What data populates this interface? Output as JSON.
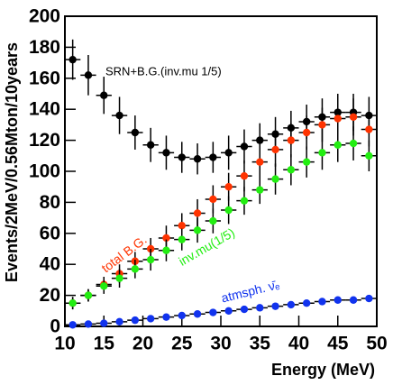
{
  "chart_data": {
    "type": "errorbar",
    "xlabel": "Energy (MeV)",
    "ylabel": "Events/2MeV/0.56Mton/10years",
    "x": [
      11,
      13,
      15,
      17,
      19,
      21,
      23,
      25,
      27,
      29,
      31,
      33,
      35,
      37,
      39,
      41,
      43,
      45,
      47,
      49
    ],
    "xerr": 1,
    "series": [
      {
        "name": "SRN+B.G.(inv.mu 1/5)",
        "color": "#000000",
        "values": [
          172,
          162,
          149,
          136,
          125,
          117,
          112,
          109,
          108,
          109,
          112,
          116,
          120,
          124,
          128,
          132,
          135,
          138,
          138,
          136
        ],
        "errors": [
          13,
          13,
          12,
          12,
          11,
          11,
          11,
          10,
          10,
          10,
          11,
          11,
          11,
          11,
          11,
          11,
          12,
          12,
          12,
          12
        ]
      },
      {
        "name": "total B.G.",
        "color": "#ff3300",
        "values": [
          15,
          20,
          27,
          34,
          42,
          50,
          57,
          65,
          73,
          82,
          90,
          97,
          106,
          114,
          120,
          125,
          130,
          134,
          135,
          127
        ],
        "errors": [
          4,
          4,
          5,
          6,
          6,
          7,
          8,
          8,
          9,
          9,
          9,
          10,
          10,
          11,
          11,
          11,
          11,
          12,
          12,
          11
        ]
      },
      {
        "name": "inv.mu(1/5)",
        "color": "#22ee11",
        "values": [
          15,
          20,
          26,
          31,
          37,
          43,
          49,
          56,
          62,
          68,
          75,
          81,
          88,
          95,
          101,
          106,
          112,
          117,
          118,
          110
        ],
        "errors": [
          4,
          4,
          5,
          6,
          6,
          7,
          7,
          7,
          8,
          8,
          9,
          9,
          9,
          10,
          10,
          10,
          11,
          11,
          11,
          10
        ]
      },
      {
        "name": "atmsph. ν̄ₑ",
        "color": "#1133ee",
        "values": [
          1,
          1.5,
          2,
          3,
          4,
          5,
          6,
          7,
          8,
          9,
          10,
          11,
          12,
          13,
          14,
          15,
          16,
          17,
          17,
          18
        ],
        "errors": [
          1,
          1,
          1,
          1,
          1,
          1,
          1,
          1,
          1,
          1,
          1,
          1,
          1,
          1,
          1,
          1,
          1,
          1,
          1,
          1
        ]
      }
    ],
    "xlim": [
      10,
      50
    ],
    "xticks": [
      10,
      15,
      20,
      25,
      30,
      35,
      40,
      45,
      50
    ],
    "ylim": [
      0,
      200
    ],
    "yticks": [
      0,
      20,
      40,
      60,
      80,
      100,
      120,
      140,
      160,
      180,
      200
    ]
  }
}
